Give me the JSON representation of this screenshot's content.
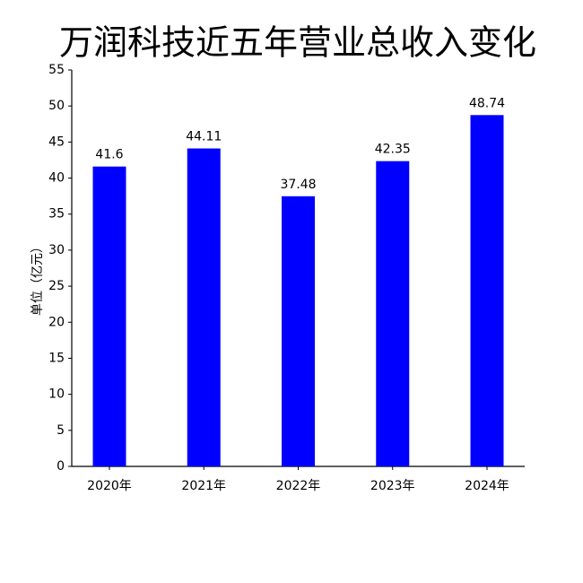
{
  "chart_data": {
    "type": "bar",
    "title": "万润科技近五年营业总收入变化",
    "y_label": "单位（亿元）",
    "categories": [
      "2020年",
      "2021年",
      "2022年",
      "2023年",
      "2024年"
    ],
    "values": [
      41.6,
      44.11,
      37.48,
      42.35,
      48.74
    ],
    "color": "#0000ff",
    "ylim": [
      0,
      55
    ],
    "yticks": [
      0,
      5,
      10,
      15,
      20,
      25,
      30,
      35,
      40,
      45,
      50,
      55
    ],
    "grid": false
  }
}
